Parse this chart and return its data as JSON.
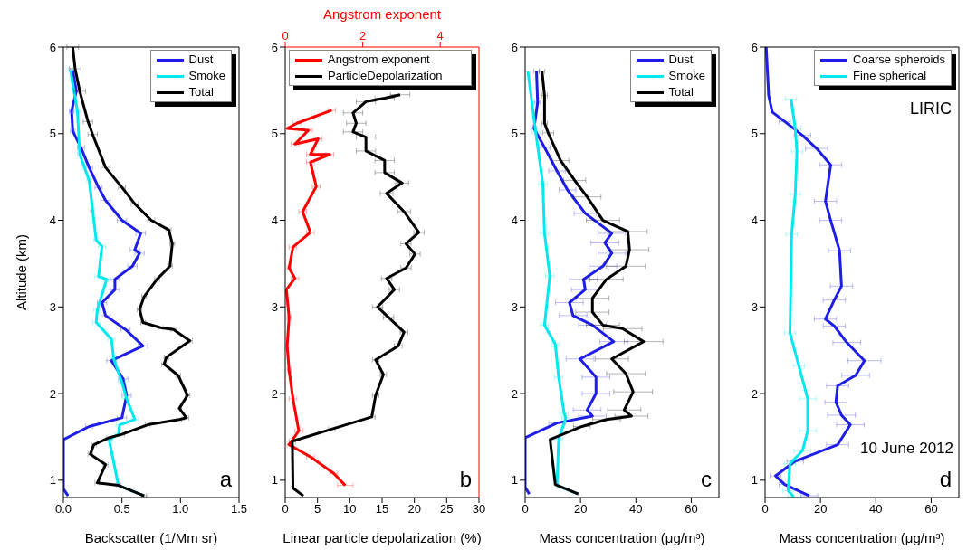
{
  "chart_data": [
    {
      "type": "line",
      "xlabel": "Backscatter (1/Mm sr)",
      "ylabel": "Altitude (km)",
      "xlim": [
        0,
        1.5
      ],
      "xticks": [
        {
          "value": 0,
          "label": "0.0"
        },
        0.5,
        {
          "value": 1,
          "label": "1.0"
        },
        1.5
      ],
      "ylim": [
        0.8,
        6
      ],
      "yticks": [
        1,
        2,
        3,
        4,
        5,
        6
      ],
      "legend": "top right",
      "annotations": [
        "a"
      ],
      "series": [
        {
          "name": "Dust",
          "color": "#1e1ee6",
          "x": [
            0.08,
            0.11,
            0.07,
            0.08,
            0.15,
            0.22,
            0.3,
            0.36,
            0.5,
            0.66,
            0.61,
            0.65,
            0.59,
            0.44,
            0.44,
            0.33,
            0.36,
            0.53,
            0.68,
            0.41,
            0.51,
            0.54,
            0.5,
            0.22,
            0.0,
            null,
            0.0,
            0.04
          ],
          "values": [
            5.73,
            5.49,
            5.26,
            5.03,
            4.84,
            4.61,
            4.38,
            4.23,
            4.0,
            3.85,
            3.66,
            3.62,
            3.47,
            3.32,
            3.2,
            3.05,
            2.9,
            2.74,
            2.55,
            2.38,
            2.17,
            1.98,
            1.72,
            1.62,
            1.47,
            null,
            0.9,
            0.82
          ],
          "xerrors": [
            0.02,
            0.02,
            0.02,
            0.02,
            0.03,
            0.03,
            0.03,
            0.04,
            0.04,
            0.04,
            0.04,
            0.04,
            0.04,
            0.04,
            0.04,
            0.04,
            0.04,
            0.04,
            0.04,
            0.04,
            0.04,
            0.04,
            0.04,
            0.03,
            null,
            null,
            null,
            null
          ]
        },
        {
          "name": "Smoke",
          "color": "#00e8f0",
          "x": [
            0.06,
            0.12,
            0.14,
            0.22,
            0.25,
            0.28,
            0.33,
            0.3,
            0.37,
            0.29,
            0.28,
            0.41,
            0.43,
            0.5,
            0.54,
            0.61,
            0.48,
            0.47,
            0.39,
            null,
            0.47,
            0.69
          ],
          "values": [
            5.73,
            5.26,
            4.76,
            4.46,
            4.12,
            3.77,
            3.7,
            3.35,
            3.32,
            2.97,
            2.82,
            2.63,
            2.4,
            2.13,
            1.94,
            1.7,
            1.64,
            1.53,
            1.47,
            null,
            0.94,
            0.82
          ],
          "xerrors": [
            0.02,
            0.02,
            0.02,
            0.02,
            0.02,
            0.02,
            0.03,
            0.03,
            0.03,
            0.03,
            0.03,
            0.03,
            0.03,
            0.03,
            0.03,
            0.03,
            0.03,
            0.03,
            0.03,
            null,
            null,
            null
          ]
        },
        {
          "name": "Total",
          "color": "#000000",
          "x": [
            0.08,
            0.1,
            0.14,
            0.21,
            0.25,
            0.36,
            0.5,
            0.61,
            0.75,
            0.9,
            0.93,
            0.91,
            0.8,
            0.69,
            0.65,
            0.68,
            0.83,
            0.94,
            1.08,
            0.88,
            0.86,
            0.98,
            1.06,
            0.99,
            1.05,
            0.99,
            0.72,
            0.5,
            0.39,
            0.26,
            0.23,
            0.36,
            0.29,
            0.47,
            0.69
          ],
          "values": [
            6.0,
            5.75,
            5.49,
            5.14,
            4.99,
            4.61,
            4.38,
            4.19,
            4.0,
            3.89,
            3.73,
            3.47,
            3.32,
            3.12,
            2.97,
            2.82,
            2.76,
            2.74,
            2.61,
            2.42,
            2.34,
            2.21,
            1.98,
            1.83,
            1.72,
            1.7,
            1.64,
            1.53,
            1.49,
            1.41,
            1.3,
            1.18,
            0.97,
            0.94,
            0.82
          ],
          "xerrors": [
            0.05,
            0.05,
            0.05,
            0.04,
            0.04,
            0.04,
            0.03,
            0.03,
            0.03,
            0.02,
            0.02,
            0.02,
            0.02,
            0.02,
            0.02,
            0.02,
            0.02,
            0.02,
            0.02,
            0.02,
            0.02,
            0.02,
            0.02,
            0.02,
            0.02,
            0.02,
            0.02,
            0.02,
            0.02,
            0.02,
            0.02,
            0.02,
            0.02,
            0.02,
            0.02
          ]
        }
      ]
    },
    {
      "type": "line",
      "xlabel": "Linear particle depolarization (%)",
      "x2label": "Angstrom exponent",
      "xlim": [
        0,
        30
      ],
      "xticks": [
        0,
        5,
        10,
        15,
        20,
        25,
        30
      ],
      "x2lim": [
        0,
        5
      ],
      "x2ticks": [
        0,
        2,
        4
      ],
      "ylim": [
        0.8,
        6
      ],
      "yticks": [
        1,
        2,
        3,
        4,
        5,
        6
      ],
      "legend": "top",
      "annotations": [
        "b"
      ],
      "series": [
        {
          "name": "Angstrom exponent",
          "color": "#ff0000",
          "axis": "x2",
          "x": [
            1.2,
            0.3,
            0.05,
            0.6,
            0.25,
            0.85,
            0.65,
            1.15,
            0.65,
            0.8,
            0.45,
            0.65,
            0.2,
            0.1,
            0.25,
            0.03,
            0.1,
            0.05,
            0.1,
            0.2,
            0.35,
            0.1,
            0.65,
            1.25,
            1.55
          ],
          "values": [
            5.27,
            5.12,
            5.06,
            5.04,
            4.88,
            4.94,
            4.76,
            4.76,
            4.67,
            4.39,
            4.1,
            3.86,
            3.69,
            3.45,
            3.33,
            3.2,
            2.88,
            2.55,
            2.27,
            1.94,
            1.57,
            1.41,
            1.27,
            1.08,
            0.94
          ],
          "xerrors": [
            0.1,
            0.1,
            null,
            0.1,
            0.1,
            0.1,
            0.1,
            0.1,
            0.1,
            0.1,
            0.1,
            0.1,
            0.1,
            0.05,
            0.1,
            null,
            0.05,
            null,
            0.05,
            0.1,
            0.1,
            0.05,
            0.1,
            0.1,
            0.2
          ]
        },
        {
          "name": "ParticleDepolarization",
          "color": "#000000",
          "x": [
            17.8,
            15.4,
            12.5,
            10.5,
            11.0,
            10.5,
            12.5,
            12.5,
            15.4,
            15.4,
            18.1,
            15.7,
            18.4,
            20.7,
            18.7,
            20.1,
            18.7,
            15.7,
            16.9,
            14.3,
            16.0,
            18.4,
            17.5,
            14.0,
            15.2,
            14.0,
            13.4,
            7.2,
            1.1,
            null,
            1.2,
            2.8
          ],
          "values": [
            5.45,
            5.41,
            5.37,
            5.24,
            5.12,
            5.02,
            4.96,
            4.8,
            4.69,
            4.55,
            4.43,
            4.31,
            4.1,
            3.86,
            3.73,
            3.61,
            3.45,
            3.33,
            3.2,
            3.0,
            2.88,
            2.71,
            2.55,
            2.39,
            2.22,
            1.98,
            1.73,
            1.59,
            1.45,
            null,
            0.91,
            0.82
          ],
          "xerrors": [
            1.5,
            1.5,
            1.5,
            1.5,
            1.5,
            1.5,
            1.5,
            1.5,
            1.5,
            1.5,
            1.0,
            1.0,
            1.0,
            0.8,
            0.8,
            0.8,
            0.8,
            0.8,
            0.8,
            0.8,
            0.8,
            0.6,
            0.6,
            0.5,
            0.5,
            0.5,
            0.5,
            0.5,
            0.5,
            null,
            null,
            null
          ]
        }
      ]
    },
    {
      "type": "line",
      "xlabel": "Mass concentration (μg/m³)",
      "xlim": [
        0,
        70
      ],
      "xticks": [
        0,
        20,
        40,
        60
      ],
      "ylim": [
        0.8,
        6
      ],
      "yticks": [
        1,
        2,
        3,
        4,
        5,
        6
      ],
      "legend": "top right",
      "annotations": [
        "c"
      ],
      "series": [
        {
          "name": "Dust",
          "color": "#1e1ee6",
          "x": [
            4.1,
            4.5,
            3.2,
            7.0,
            11.5,
            15.3,
            21.7,
            31.3,
            28.8,
            31.3,
            28.1,
            21.1,
            21.7,
            16.0,
            17.3,
            24.3,
            32.0,
            19.8,
            25.6,
            25.6,
            22.4,
            24.3,
            11.5,
            0,
            null,
            0,
            1.5
          ],
          "values": [
            5.72,
            5.36,
            5.06,
            4.84,
            4.57,
            4.35,
            4.08,
            3.85,
            3.74,
            3.62,
            3.47,
            3.32,
            3.2,
            3.05,
            2.9,
            2.79,
            2.6,
            2.4,
            2.19,
            2.0,
            1.81,
            1.74,
            1.66,
            1.49,
            null,
            0.92,
            0.84
          ],
          "xerrors": [
            1,
            1,
            1,
            2,
            3,
            3,
            4,
            5,
            5,
            5,
            5,
            5,
            5,
            5,
            5,
            5,
            5,
            5,
            5,
            5,
            5,
            5,
            3,
            null,
            null,
            null,
            null
          ]
        },
        {
          "name": "Smoke",
          "color": "#00e8f0",
          "x": [
            1.0,
            3.8,
            6.4,
            7.0,
            8.9,
            7.0,
            10.9,
            12.1,
            14.1,
            14.7,
            12.1,
            null,
            11.5,
            19.2
          ],
          "values": [
            5.72,
            5.02,
            4.42,
            3.85,
            3.36,
            2.79,
            2.57,
            2.19,
            1.77,
            1.72,
            1.47,
            null,
            0.94,
            0.84
          ],
          "xerrors": [
            null,
            1.5,
            1.5,
            1.5,
            1.5,
            1.5,
            1.5,
            1.5,
            1.5,
            1.5,
            1.5,
            null,
            null,
            null
          ]
        },
        {
          "name": "Total",
          "color": "#000000",
          "x": [
            6.1,
            7.0,
            7.0,
            8.3,
            12.8,
            17.9,
            22.4,
            28.1,
            37.1,
            37.7,
            36.4,
            29.4,
            24.3,
            24.3,
            28.1,
            35.2,
            42.8,
            31.3,
            36.4,
            39.0,
            35.8,
            38.4,
            29.4,
            20.5,
            9.0,
            null,
            10.9,
            19.2
          ],
          "values": [
            5.72,
            5.44,
            5.12,
            5.01,
            4.69,
            4.46,
            4.27,
            4.0,
            3.87,
            3.66,
            3.47,
            3.32,
            3.1,
            2.94,
            2.79,
            2.75,
            2.6,
            2.4,
            2.23,
            2.02,
            1.81,
            1.74,
            1.7,
            1.62,
            1.47,
            null,
            0.95,
            0.84
          ],
          "xerrors": [
            1,
            1,
            1,
            2,
            3,
            4,
            5,
            6,
            7,
            7,
            7,
            6,
            6,
            6,
            6,
            7,
            7,
            6,
            7,
            7,
            6,
            6,
            5,
            3,
            null,
            null,
            null,
            null
          ]
        }
      ]
    },
    {
      "type": "line",
      "xlabel": "Mass concentration (μg/m³)",
      "xlim": [
        0,
        70
      ],
      "xticks": [
        0,
        20,
        40,
        60
      ],
      "ylim": [
        0.8,
        6
      ],
      "yticks": [
        1,
        2,
        3,
        4,
        5,
        6
      ],
      "legend": "top right",
      "annotations": [
        "LIRIC",
        "10 June 2012",
        "d"
      ],
      "series": [
        {
          "name": "Coarse spheroids",
          "color": "#1e1ee6",
          "x": [
            0.4,
            1.3,
            2.6,
            7.1,
            13.5,
            18.6,
            23.7,
            21.8,
            23.7,
            26.9,
            27.6,
            25.0,
            21.8,
            25.0,
            29.5,
            35.9,
            32.7,
            26.2,
            25.6,
            27.6,
            30.8,
            26.2,
            10.9,
            3.8,
            7.1,
            16.0
          ],
          "values": [
            6.0,
            5.44,
            5.25,
            5.14,
            4.98,
            4.83,
            4.64,
            4.22,
            4.0,
            3.65,
            3.24,
            3.08,
            2.86,
            2.78,
            2.59,
            2.38,
            2.21,
            2.09,
            1.9,
            1.75,
            1.64,
            1.41,
            1.22,
            1.05,
            0.95,
            0.82
          ],
          "xerrors": [
            null,
            null,
            null,
            2,
            3,
            4,
            4,
            4,
            4,
            4,
            4,
            4,
            4,
            4,
            5,
            6,
            5,
            4,
            4,
            5,
            5,
            4,
            3,
            2,
            2,
            3
          ]
        },
        {
          "name": "Fine spherical",
          "color": "#00e8f0",
          "x": [
            9.4,
            10.9,
            11.5,
            10.9,
            9.6,
            9.0,
            12.2,
            15.4,
            15.4,
            13.5,
            9.0,
            8.3,
            10.3
          ],
          "values": [
            5.4,
            5.06,
            4.79,
            4.3,
            3.84,
            2.7,
            2.32,
            1.94,
            1.57,
            1.34,
            1.19,
            0.88,
            0.81
          ],
          "xerrors": [
            2,
            2,
            2,
            2,
            2,
            2,
            2,
            3,
            3,
            3,
            2,
            2,
            2
          ]
        }
      ]
    }
  ]
}
